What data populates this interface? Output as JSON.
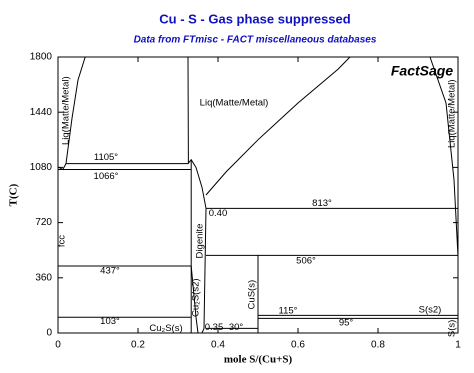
{
  "chart_data": {
    "type": "line",
    "title": "Cu - S -  Gas phase suppressed",
    "subtitle": "Data from FTmisc - FACT miscellaneous databases",
    "brand": "FactSage",
    "xlabel": "mole S/(Cu+S)",
    "ylabel": "T(C)",
    "xlim": [
      0,
      1
    ],
    "ylim": [
      0,
      1800
    ],
    "xticks": [
      0,
      0.2,
      0.4,
      0.6,
      0.8,
      1
    ],
    "yticks": [
      0,
      360,
      720,
      1080,
      1440,
      1800
    ],
    "series": [
      {
        "color": "#000000",
        "x": [
          0,
          0.012,
          0.02,
          0.035,
          0.05,
          0.068
        ],
        "values": [
          1084,
          1066,
          1105,
          1400,
          1650,
          1800
        ]
      },
      {
        "color": "#000000",
        "x": [
          0.325,
          0.326
        ],
        "values": [
          1800,
          1105
        ]
      },
      {
        "color": "#000000",
        "x": [
          0.02,
          0.325,
          0.333,
          0.345,
          0.36,
          0.37
        ],
        "values": [
          1105,
          1105,
          1130,
          1080,
          950,
          813
        ]
      },
      {
        "color": "#000000",
        "x": [
          0,
          0.333
        ],
        "values": [
          1066,
          1066
        ]
      },
      {
        "color": "#000000",
        "x": [
          0,
          0.333
        ],
        "values": [
          437,
          437
        ]
      },
      {
        "color": "#000000",
        "x": [
          0,
          0.333
        ],
        "values": [
          103,
          103
        ]
      },
      {
        "color": "#000000",
        "x": [
          0.333,
          0.333
        ],
        "values": [
          0,
          1130
        ]
      },
      {
        "color": "#000000",
        "x": [
          0.37,
          0.365,
          0.36
        ],
        "values": [
          813,
          30,
          0
        ]
      },
      {
        "color": "#000000",
        "x": [
          0.333,
          0.345,
          0.35
        ],
        "values": [
          437,
          103,
          0
        ]
      },
      {
        "color": "#000000",
        "x": [
          0.37,
          1
        ],
        "values": [
          813,
          813
        ]
      },
      {
        "color": "#000000",
        "x": [
          0.37,
          1
        ],
        "values": [
          506,
          506
        ]
      },
      {
        "color": "#000000",
        "x": [
          0.5,
          0.5
        ],
        "values": [
          0,
          506
        ]
      },
      {
        "color": "#000000",
        "x": [
          0.5,
          1
        ],
        "values": [
          115,
          115
        ]
      },
      {
        "color": "#000000",
        "x": [
          0.5,
          1
        ],
        "values": [
          95,
          95
        ]
      },
      {
        "color": "#000000",
        "x": [
          0.37,
          0.5
        ],
        "values": [
          30,
          30
        ]
      },
      {
        "color": "#000000",
        "x": [
          0.37,
          0.42,
          0.5,
          0.6,
          0.7,
          0.73
        ],
        "values": [
          900,
          1050,
          1260,
          1500,
          1720,
          1800
        ]
      },
      {
        "color": "#000000",
        "x": [
          0.93,
          0.97,
          0.99,
          1,
          1
        ],
        "values": [
          1800,
          1500,
          1000,
          500,
          115
        ]
      }
    ],
    "annotations": [
      {
        "text": "1105°",
        "x": 0.12,
        "y": 1145
      },
      {
        "text": "1066°",
        "x": 0.12,
        "y": 1020
      },
      {
        "text": "437°",
        "x": 0.13,
        "y": 405
      },
      {
        "text": "103°",
        "x": 0.13,
        "y": 75
      },
      {
        "text": "Liq(Matte/Metal)",
        "x": 0.02,
        "y": 1450,
        "vertical": true
      },
      {
        "text": "Liq(Matte/Metal)",
        "x": 0.44,
        "y": 1500
      },
      {
        "text": "Liq(Matte/Metal)",
        "x": 0.985,
        "y": 1430,
        "vertical": true
      },
      {
        "text": "fcc",
        "x": 0.01,
        "y": 600,
        "vertical": true
      },
      {
        "text": "Digenite",
        "x": 0.355,
        "y": 600,
        "vertical": true
      },
      {
        "text": "Cu₂S(s2)",
        "x": 0.345,
        "y": 230,
        "vertical": true
      },
      {
        "text": "Cu₂S(s)",
        "x": 0.27,
        "y": 30
      },
      {
        "text": "0.35",
        "x": 0.39,
        "y": 35
      },
      {
        "text": "0.40",
        "x": 0.4,
        "y": 780
      },
      {
        "text": "30°",
        "x": 0.445,
        "y": 35
      },
      {
        "text": "CuS(s)",
        "x": 0.485,
        "y": 250,
        "vertical": true
      },
      {
        "text": "813°",
        "x": 0.66,
        "y": 845
      },
      {
        "text": "506°",
        "x": 0.62,
        "y": 470
      },
      {
        "text": "115°",
        "x": 0.575,
        "y": 145
      },
      {
        "text": "95°",
        "x": 0.72,
        "y": 65
      },
      {
        "text": "S(s2)",
        "x": 0.93,
        "y": 150
      },
      {
        "text": "S(s)",
        "x": 0.985,
        "y": 30,
        "vertical": true
      }
    ]
  }
}
